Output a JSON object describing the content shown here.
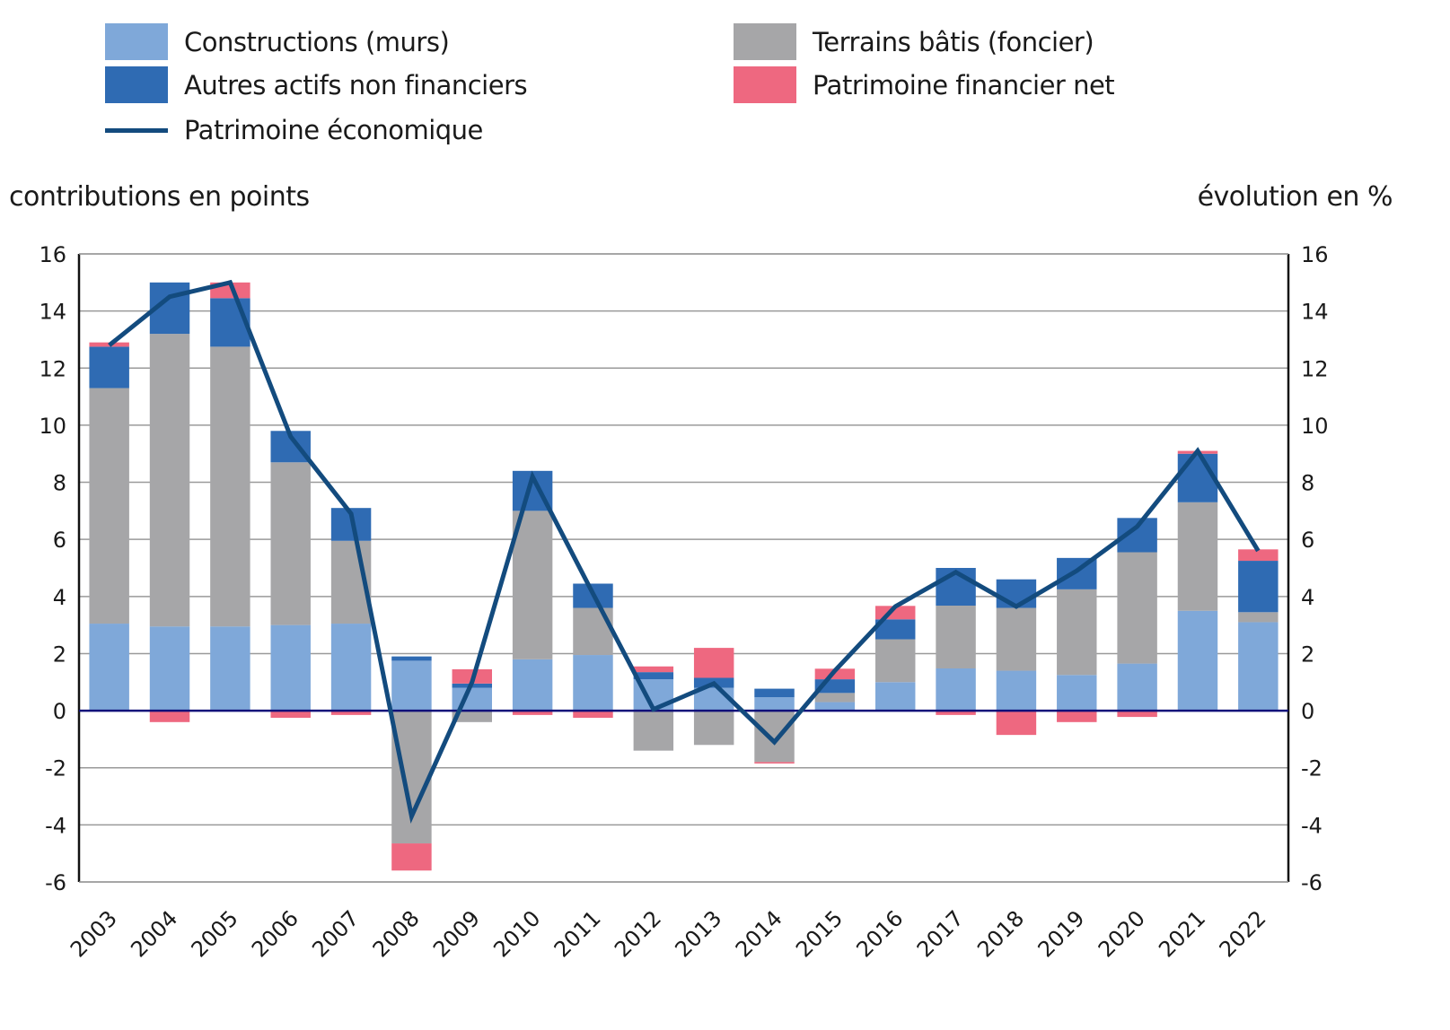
{
  "legend": [
    {
      "label": "Constructions (murs)",
      "color": "#7fa8d9",
      "kind": "bar"
    },
    {
      "label": "Autres actifs non financiers",
      "color": "#2f6bb3",
      "kind": "bar"
    },
    {
      "label": "Patrimoine économique",
      "color": "#134b7e",
      "kind": "line"
    },
    {
      "label": "Terrains bâtis (foncier)",
      "color": "#a6a6a8",
      "kind": "bar"
    },
    {
      "label": "Patrimoine financier net",
      "color": "#ee6880",
      "kind": "bar"
    }
  ],
  "chart_data": {
    "type": "bar",
    "stacked": true,
    "title": "",
    "ylabel": "contributions en points",
    "y2label": "évolution en %",
    "xlabel": "",
    "ylim": [
      -6,
      16
    ],
    "y2lim": [
      -6,
      16
    ],
    "yticks": [
      16,
      14,
      12,
      10,
      8,
      6,
      4,
      2,
      0,
      -2,
      -4,
      -6
    ],
    "grid": true,
    "legend_position": "top",
    "categories": [
      "2003",
      "2004",
      "2005",
      "2006",
      "2007",
      "2008",
      "2009",
      "2010",
      "2011",
      "2012",
      "2013",
      "2014",
      "2015",
      "2016",
      "2017",
      "2018",
      "2019",
      "2020",
      "2021",
      "2022"
    ],
    "series": [
      {
        "name": "Constructions (murs)",
        "type": "bar",
        "color": "#7fa8d9",
        "values": [
          3.05,
          2.95,
          2.95,
          3.0,
          3.05,
          1.75,
          0.8,
          1.8,
          1.95,
          1.1,
          0.8,
          0.47,
          0.3,
          1.0,
          1.48,
          1.4,
          1.25,
          1.65,
          3.5,
          3.1
        ]
      },
      {
        "name": "Terrains bâtis (foncier)",
        "type": "bar",
        "color": "#a6a6a8",
        "values": [
          8.25,
          10.25,
          9.8,
          5.7,
          2.9,
          -4.65,
          -0.4,
          5.2,
          1.65,
          -1.4,
          -1.2,
          -1.8,
          0.32,
          1.5,
          2.2,
          2.2,
          3.0,
          3.9,
          3.8,
          0.35
        ]
      },
      {
        "name": "Autres actifs non financiers",
        "type": "bar",
        "color": "#2f6bb3",
        "values": [
          1.45,
          1.8,
          1.7,
          1.1,
          1.15,
          0.15,
          0.15,
          1.4,
          0.85,
          0.25,
          0.35,
          0.3,
          0.48,
          0.7,
          1.32,
          1.0,
          1.1,
          1.2,
          1.7,
          1.8
        ]
      },
      {
        "name": "Patrimoine financier net",
        "type": "bar",
        "color": "#ee6880",
        "values": [
          0.15,
          -0.4,
          0.55,
          -0.25,
          -0.15,
          -0.95,
          0.5,
          -0.15,
          -0.25,
          0.2,
          1.05,
          -0.05,
          0.37,
          0.47,
          -0.15,
          -0.85,
          -0.4,
          -0.22,
          0.1,
          0.4
        ]
      },
      {
        "name": "Patrimoine économique",
        "type": "line",
        "color": "#134b7e",
        "values": [
          12.8,
          14.5,
          15.0,
          9.6,
          6.9,
          -3.7,
          1.0,
          8.2,
          4.1,
          0.05,
          0.95,
          -1.1,
          1.4,
          3.65,
          4.85,
          3.65,
          4.9,
          6.45,
          9.1,
          5.6
        ]
      }
    ]
  }
}
